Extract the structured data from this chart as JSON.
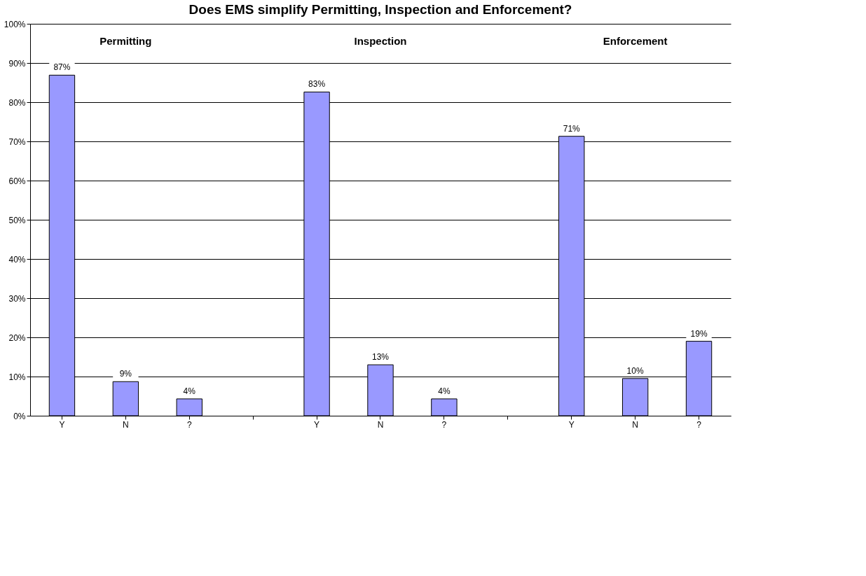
{
  "chart_data": {
    "type": "bar",
    "title": "Does EMS simplify Permitting, Inspection and Enforcement?",
    "categories": [
      "Y",
      "N",
      "?",
      null,
      "Y",
      "N",
      "?",
      null,
      "Y",
      "N",
      "?"
    ],
    "series": [
      {
        "color": "#9999ff",
        "values": [
          86.9,
          8.7,
          4.3,
          null,
          82.6,
          13,
          4.3,
          null,
          71.3,
          9.5,
          19
        ],
        "value_labels": [
          "87%",
          "9%",
          "4%",
          null,
          "83%",
          "13%",
          "4%",
          null,
          "71%",
          "10%",
          "19%"
        ]
      }
    ],
    "annotations": [
      "Permitting",
      "Inspection",
      "Enforcement"
    ],
    "ylim": [
      0,
      100
    ],
    "yticks": [
      {
        "value": 0,
        "label": "0%"
      },
      {
        "value": 10,
        "label": "10%"
      },
      {
        "value": 20,
        "label": "20%"
      },
      {
        "value": 30,
        "label": "30%"
      },
      {
        "value": 40,
        "label": "40%"
      },
      {
        "value": 50,
        "label": "50%"
      },
      {
        "value": 60,
        "label": "60%"
      },
      {
        "value": 70,
        "label": "70%"
      },
      {
        "value": 80,
        "label": "80%"
      },
      {
        "value": 90,
        "label": "90%"
      },
      {
        "value": 100,
        "label": "100%"
      }
    ],
    "grid": "y",
    "legend": false
  }
}
